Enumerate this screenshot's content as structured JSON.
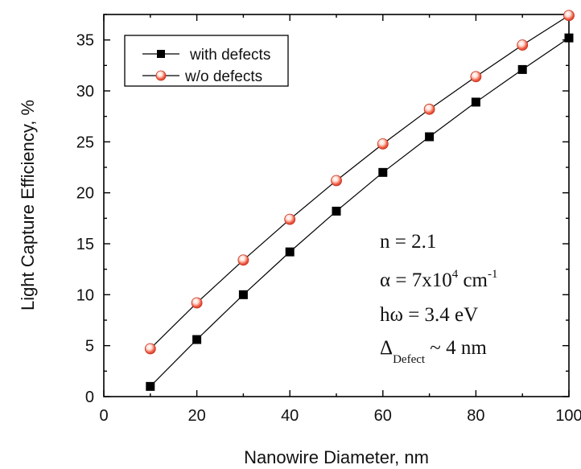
{
  "chart_data": {
    "type": "line",
    "xlabel": "Nanowire Diameter, nm",
    "ylabel": "Light Capture Efficiency, %",
    "xlim": [
      0,
      100
    ],
    "ylim": [
      0,
      37.5
    ],
    "xticks": [
      0,
      20,
      40,
      60,
      80,
      100
    ],
    "yticks": [
      0,
      5,
      10,
      15,
      20,
      25,
      30,
      35
    ],
    "x": [
      10,
      20,
      30,
      40,
      50,
      60,
      70,
      80,
      90,
      100
    ],
    "series": [
      {
        "name": "with defects",
        "marker": "square",
        "color": "#000000",
        "values": [
          1.0,
          5.6,
          10.0,
          14.2,
          18.2,
          22.0,
          25.5,
          28.9,
          32.1,
          35.2
        ]
      },
      {
        "name": "w/o defects",
        "marker": "circle",
        "color": "#e8432a",
        "values": [
          4.7,
          9.2,
          13.4,
          17.4,
          21.2,
          24.8,
          28.2,
          31.4,
          34.5,
          37.4
        ]
      }
    ],
    "legend_position": "top-left",
    "grid": false,
    "annotations": {
      "n": "n = 2.1",
      "alpha_main": "α = 7x10",
      "alpha_exp": "4",
      "alpha_unit": " cm",
      "alpha_unit_exp": "-1",
      "homega": "hω = 3.4 eV",
      "delta_main": "Δ",
      "delta_sub": "Defect",
      "delta_rest": " ~ 4 nm"
    }
  }
}
